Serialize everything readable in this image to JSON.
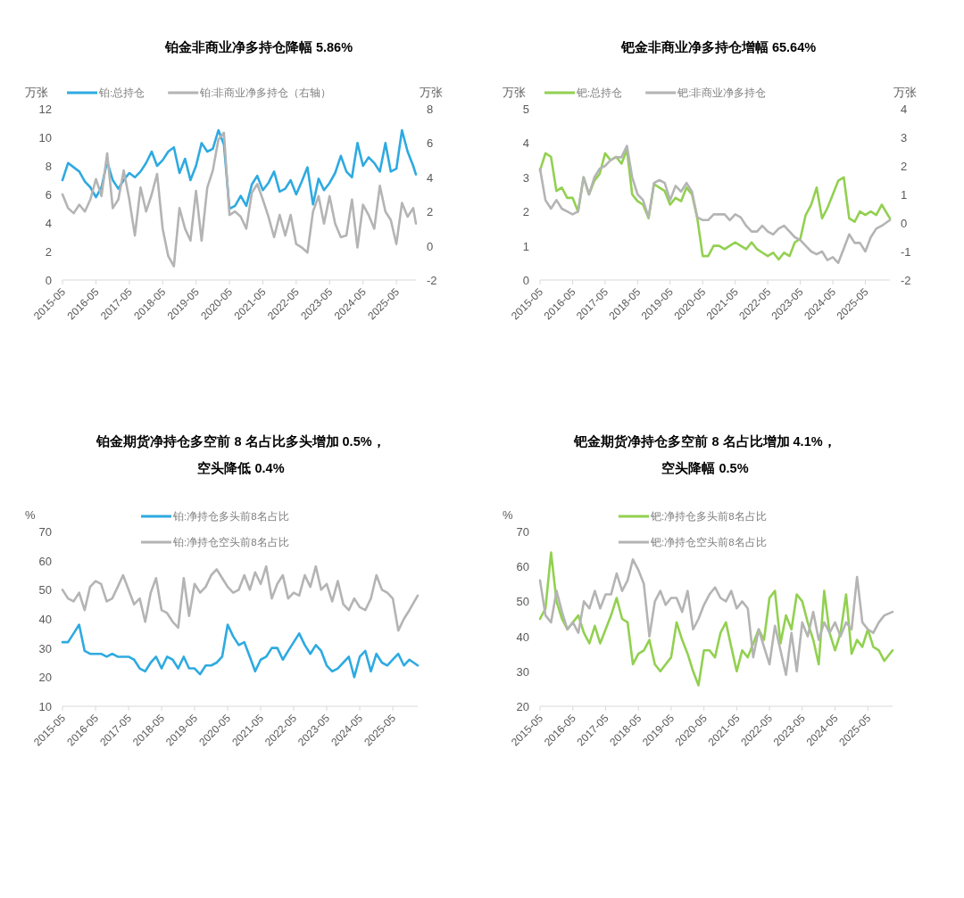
{
  "chart_data": [
    {
      "type": "line",
      "title": "铂金非商业净多持仓降幅 5.86%",
      "ylabel": "万张",
      "y2label": "万张",
      "legend": "top",
      "x": [
        "2015-05",
        "2015-07",
        "2015-09",
        "2015-11",
        "2016-01",
        "2016-03",
        "2016-05",
        "2016-07",
        "2016-09",
        "2016-11",
        "2017-01",
        "2017-03",
        "2017-05",
        "2017-07",
        "2017-09",
        "2017-11",
        "2018-01",
        "2018-03",
        "2018-05",
        "2018-07",
        "2018-09",
        "2018-11",
        "2019-01",
        "2019-03",
        "2019-05",
        "2019-07",
        "2019-09",
        "2019-11",
        "2020-01",
        "2020-03",
        "2020-05",
        "2020-07",
        "2020-09",
        "2020-11",
        "2021-01",
        "2021-03",
        "2021-05",
        "2021-07",
        "2021-09",
        "2021-11",
        "2022-01",
        "2022-03",
        "2022-05",
        "2022-07",
        "2022-09",
        "2022-11",
        "2023-01",
        "2023-03",
        "2023-05",
        "2023-07",
        "2023-09",
        "2023-11",
        "2024-01",
        "2024-03",
        "2024-05",
        "2024-07",
        "2024-09",
        "2024-11",
        "2025-01",
        "2025-03",
        "2025-05",
        "2025-07",
        "2025-09",
        "2025-11",
        "2025-12"
      ],
      "xlim": [
        "2015-05",
        "2025-12"
      ],
      "xticks": [
        "2015-05",
        "2016-05",
        "2017-05",
        "2018-05",
        "2019-05",
        "2020-05",
        "2021-05",
        "2022-05",
        "2023-05",
        "2024-05",
        "2025-05"
      ],
      "ylim": [
        0,
        12
      ],
      "yticks": [
        0,
        2,
        4,
        6,
        8,
        10,
        12
      ],
      "y2lim": [
        -2,
        8
      ],
      "y2ticks": [
        -2,
        0,
        2,
        4,
        6,
        8
      ],
      "series": [
        {
          "name": "铂:总持仓",
          "color": "#2eaae1",
          "values": [
            7.0,
            8.2,
            7.9,
            7.6,
            6.9,
            6.5,
            5.8,
            6.5,
            8.3,
            7.0,
            6.4,
            7.0,
            7.5,
            7.2,
            7.6,
            8.2,
            9.0,
            8.0,
            8.4,
            9.0,
            9.3,
            7.5,
            8.5,
            7.0,
            8.0,
            9.6,
            9.0,
            9.2,
            10.5,
            9.5,
            5.0,
            5.2,
            5.9,
            5.2,
            6.7,
            7.3,
            6.3,
            6.8,
            7.6,
            6.2,
            6.4,
            7.0,
            6.0,
            6.9,
            7.9,
            5.3,
            7.1,
            6.3,
            6.8,
            7.5,
            8.7,
            7.6,
            7.2,
            9.6,
            8.0,
            8.6,
            8.2,
            7.6,
            9.6,
            7.6,
            7.8,
            10.5,
            9.0,
            8.0,
            7.4
          ]
        },
        {
          "name": "铂:非商业净多持仓（右轴）",
          "color": "#b4b4b4",
          "axis": "y2",
          "values": [
            3.0,
            2.2,
            1.9,
            2.4,
            2.0,
            2.7,
            3.9,
            2.9,
            5.4,
            2.2,
            2.7,
            4.4,
            2.7,
            0.6,
            3.4,
            2.0,
            3.0,
            4.2,
            1.0,
            -0.6,
            -1.2,
            2.2,
            1.0,
            0.3,
            3.2,
            0.3,
            3.4,
            4.4,
            6.2,
            6.6,
            1.8,
            2.0,
            1.7,
            1.0,
            3.1,
            3.6,
            2.7,
            1.7,
            0.5,
            1.8,
            0.6,
            1.8,
            0.1,
            -0.1,
            -0.4,
            2.0,
            2.9,
            1.3,
            2.9,
            1.3,
            0.5,
            0.6,
            2.7,
            -0.1,
            2.4,
            1.8,
            1.0,
            3.5,
            2.0,
            1.5,
            0.1,
            2.5,
            1.7,
            2.2,
            1.3
          ]
        }
      ]
    },
    {
      "type": "line",
      "title": "钯金非商业净多持仓增幅 65.64%",
      "ylabel": "万张",
      "y2label": "万张",
      "legend": "top",
      "x": [
        "2015-05",
        "2015-07",
        "2015-09",
        "2015-11",
        "2016-01",
        "2016-03",
        "2016-05",
        "2016-07",
        "2016-09",
        "2016-11",
        "2017-01",
        "2017-03",
        "2017-05",
        "2017-07",
        "2017-09",
        "2017-11",
        "2018-01",
        "2018-03",
        "2018-05",
        "2018-07",
        "2018-09",
        "2018-11",
        "2019-01",
        "2019-03",
        "2019-05",
        "2019-07",
        "2019-09",
        "2019-11",
        "2020-01",
        "2020-03",
        "2020-05",
        "2020-07",
        "2020-09",
        "2020-11",
        "2021-01",
        "2021-03",
        "2021-05",
        "2021-07",
        "2021-09",
        "2021-11",
        "2022-01",
        "2022-03",
        "2022-05",
        "2022-07",
        "2022-09",
        "2022-11",
        "2023-01",
        "2023-03",
        "2023-05",
        "2023-07",
        "2023-09",
        "2023-11",
        "2024-01",
        "2024-03",
        "2024-05",
        "2024-07",
        "2024-09",
        "2024-11",
        "2025-01",
        "2025-03",
        "2025-05",
        "2025-07",
        "2025-09",
        "2025-11",
        "2026-02"
      ],
      "xlim": [
        "2015-05",
        "2026-02"
      ],
      "xticks": [
        "2015-05",
        "2016-05",
        "2017-05",
        "2018-05",
        "2019-05",
        "2020-05",
        "2021-05",
        "2022-05",
        "2023-05",
        "2024-05",
        "2025-05"
      ],
      "ylim": [
        0,
        5
      ],
      "yticks": [
        0,
        1,
        2,
        3,
        4,
        5
      ],
      "y2lim": [
        -2,
        4
      ],
      "y2ticks": [
        -2,
        -1,
        0,
        1,
        2,
        3,
        4
      ],
      "series": [
        {
          "name": "钯:总持仓",
          "color": "#92d050",
          "values": [
            3.2,
            3.7,
            3.6,
            2.6,
            2.7,
            2.4,
            2.4,
            2.0,
            3.0,
            2.5,
            2.9,
            3.1,
            3.7,
            3.5,
            3.6,
            3.4,
            3.8,
            2.5,
            2.3,
            2.2,
            1.8,
            2.8,
            2.7,
            2.6,
            2.2,
            2.4,
            2.3,
            2.7,
            2.5,
            1.8,
            0.7,
            0.7,
            1.0,
            1.0,
            0.9,
            1.0,
            1.1,
            1.0,
            0.9,
            1.1,
            0.9,
            0.8,
            0.7,
            0.8,
            0.6,
            0.8,
            0.7,
            1.1,
            1.2,
            1.9,
            2.2,
            2.7,
            1.8,
            2.1,
            2.5,
            2.9,
            3.0,
            1.8,
            1.7,
            2.0,
            1.9,
            2.0,
            1.9,
            2.2,
            1.8
          ]
        },
        {
          "name": "钯:非商业净多持仓",
          "color": "#b4b4b4",
          "axis": "y2",
          "values": [
            1.9,
            0.8,
            0.5,
            0.8,
            0.5,
            0.4,
            0.3,
            0.4,
            1.6,
            1.0,
            1.6,
            1.9,
            2.0,
            2.2,
            2.3,
            2.3,
            2.7,
            1.6,
            1.0,
            0.8,
            0.2,
            1.4,
            1.5,
            1.4,
            0.8,
            1.3,
            1.1,
            1.4,
            1.1,
            0.2,
            0.1,
            0.1,
            0.3,
            0.3,
            0.3,
            0.1,
            0.3,
            0.2,
            -0.1,
            -0.3,
            -0.3,
            -0.1,
            -0.3,
            -0.4,
            -0.2,
            -0.1,
            -0.3,
            -0.5,
            -0.6,
            -0.8,
            -1.0,
            -1.1,
            -1.0,
            -1.3,
            -1.2,
            -1.4,
            -0.9,
            -0.4,
            -0.7,
            -0.7,
            -1.0,
            -0.5,
            -0.2,
            -0.1,
            0.1
          ]
        }
      ]
    },
    {
      "type": "line",
      "title": "铂金期货净持仓多空前 8 名占比多头增加 0.5%，",
      "subtitle": "空头降低 0.4%",
      "ylabel": "%",
      "legend": "top",
      "x": [
        "2015-05",
        "2015-07",
        "2015-09",
        "2015-11",
        "2016-01",
        "2016-03",
        "2016-05",
        "2016-07",
        "2016-09",
        "2016-11",
        "2017-01",
        "2017-03",
        "2017-05",
        "2017-07",
        "2017-09",
        "2017-11",
        "2018-01",
        "2018-03",
        "2018-05",
        "2018-07",
        "2018-09",
        "2018-11",
        "2019-01",
        "2019-03",
        "2019-05",
        "2019-07",
        "2019-09",
        "2019-11",
        "2020-01",
        "2020-03",
        "2020-05",
        "2020-07",
        "2020-09",
        "2020-11",
        "2021-01",
        "2021-03",
        "2021-05",
        "2021-07",
        "2021-09",
        "2021-11",
        "2022-01",
        "2022-03",
        "2022-05",
        "2022-07",
        "2022-09",
        "2022-11",
        "2023-01",
        "2023-03",
        "2023-05",
        "2023-07",
        "2023-09",
        "2023-11",
        "2024-01",
        "2024-03",
        "2024-05",
        "2024-07",
        "2024-09",
        "2024-11",
        "2025-01",
        "2025-03",
        "2025-05",
        "2025-07",
        "2025-09",
        "2025-11",
        "2026-02"
      ],
      "xlim": [
        "2015-05",
        "2026-02"
      ],
      "xticks": [
        "2015-05",
        "2016-05",
        "2017-05",
        "2018-05",
        "2019-05",
        "2020-05",
        "2021-05",
        "2022-05",
        "2023-05",
        "2024-05",
        "2025-05"
      ],
      "ylim": [
        10,
        70
      ],
      "yticks": [
        10,
        20,
        30,
        40,
        50,
        60,
        70
      ],
      "series": [
        {
          "name": "铂:净持仓多头前8名占比",
          "color": "#2eaae1",
          "values": [
            32,
            32,
            35,
            38,
            29,
            28,
            28,
            28,
            27,
            28,
            27,
            27,
            27,
            26,
            23,
            22,
            25,
            27,
            23,
            27,
            26,
            23,
            27,
            23,
            23,
            21,
            24,
            24,
            25,
            27,
            38,
            34,
            31,
            32,
            27,
            22,
            26,
            27,
            30,
            30,
            26,
            29,
            32,
            35,
            31,
            28,
            31,
            29,
            24,
            22,
            23,
            25,
            27,
            20,
            27,
            29,
            22,
            28,
            25,
            24,
            26,
            28,
            24,
            26,
            24
          ]
        },
        {
          "name": "铂:净持仓空头前8名占比",
          "color": "#b4b4b4",
          "values": [
            50,
            47,
            46,
            49,
            43,
            51,
            53,
            52,
            46,
            47,
            51,
            55,
            50,
            45,
            47,
            39,
            49,
            54,
            43,
            42,
            39,
            37,
            54,
            41,
            52,
            49,
            51,
            55,
            57,
            54,
            51,
            49,
            50,
            55,
            50,
            56,
            52,
            58,
            47,
            52,
            55,
            47,
            49,
            48,
            55,
            51,
            58,
            50,
            52,
            46,
            53,
            45,
            43,
            47,
            44,
            43,
            47,
            55,
            50,
            49,
            47,
            36,
            40,
            43,
            48
          ]
        }
      ]
    },
    {
      "type": "line",
      "title": "钯金期货净持仓多空前 8 名占比增加 4.1%，",
      "subtitle": "空头降幅 0.5%",
      "ylabel": "%",
      "legend": "top",
      "x": [
        "2015-05",
        "2015-07",
        "2015-09",
        "2015-11",
        "2016-01",
        "2016-03",
        "2016-05",
        "2016-07",
        "2016-09",
        "2016-11",
        "2017-01",
        "2017-03",
        "2017-05",
        "2017-07",
        "2017-09",
        "2017-11",
        "2018-01",
        "2018-03",
        "2018-05",
        "2018-07",
        "2018-09",
        "2018-11",
        "2019-01",
        "2019-03",
        "2019-05",
        "2019-07",
        "2019-09",
        "2019-11",
        "2020-01",
        "2020-03",
        "2020-05",
        "2020-07",
        "2020-09",
        "2020-11",
        "2021-01",
        "2021-03",
        "2021-05",
        "2021-07",
        "2021-09",
        "2021-11",
        "2022-01",
        "2022-03",
        "2022-05",
        "2022-07",
        "2022-09",
        "2022-11",
        "2023-01",
        "2023-03",
        "2023-05",
        "2023-07",
        "2023-09",
        "2023-11",
        "2024-01",
        "2024-03",
        "2024-05",
        "2024-07",
        "2024-09",
        "2024-11",
        "2025-01",
        "2025-03",
        "2025-05",
        "2025-07",
        "2025-09",
        "2025-11",
        "2026-02"
      ],
      "xlim": [
        "2015-05",
        "2026-02"
      ],
      "xticks": [
        "2015-05",
        "2016-05",
        "2017-05",
        "2018-05",
        "2019-05",
        "2020-05",
        "2021-05",
        "2022-05",
        "2023-05",
        "2024-05",
        "2025-05"
      ],
      "ylim": [
        20,
        70
      ],
      "yticks": [
        20,
        30,
        40,
        50,
        60,
        70
      ],
      "series": [
        {
          "name": "钯:净持仓多头前8名占比",
          "color": "#92d050",
          "values": [
            45,
            48,
            64,
            50,
            45,
            42,
            44,
            46,
            41,
            38,
            43,
            38,
            42,
            46,
            51,
            45,
            44,
            32,
            35,
            36,
            39,
            32,
            30,
            32,
            34,
            44,
            39,
            35,
            30,
            26,
            36,
            36,
            34,
            41,
            44,
            37,
            30,
            36,
            34,
            38,
            42,
            39,
            51,
            53,
            38,
            46,
            42,
            52,
            50,
            44,
            39,
            32,
            53,
            41,
            36,
            41,
            52,
            35,
            39,
            37,
            42,
            37,
            36,
            33,
            36
          ]
        },
        {
          "name": "钯:净持仓空头前8名占比",
          "color": "#b4b4b4",
          "values": [
            56,
            46,
            44,
            53,
            47,
            42,
            44,
            41,
            50,
            48,
            53,
            48,
            52,
            52,
            58,
            53,
            56,
            62,
            59,
            55,
            40,
            50,
            53,
            49,
            51,
            51,
            47,
            53,
            42,
            45,
            49,
            52,
            54,
            51,
            50,
            53,
            48,
            50,
            48,
            34,
            42,
            37,
            32,
            43,
            36,
            29,
            41,
            30,
            44,
            40,
            47,
            39,
            44,
            41,
            44,
            40,
            44,
            42,
            57,
            44,
            42,
            41,
            44,
            46,
            47
          ]
        }
      ]
    }
  ]
}
